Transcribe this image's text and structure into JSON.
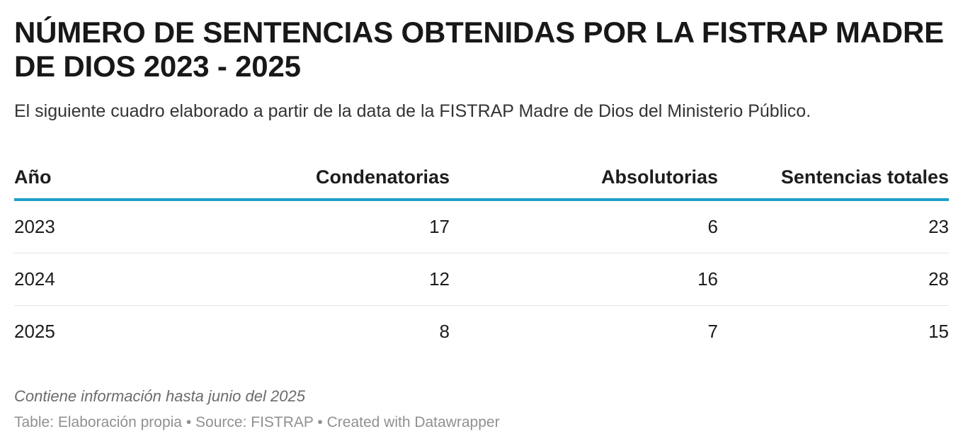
{
  "title": "NÚMERO DE SENTENCIAS OBTENIDAS POR LA FISTRAP MADRE DE DIOS 2023 - 2025",
  "subtitle": "El siguiente cuadro elaborado a partir de la data de la FISTRAP Madre de Dios del Ministerio Público.",
  "colors": {
    "header_rule": "#1d9fca",
    "row_divider": "#e3e3e3",
    "text": "#1d1d1d",
    "note_text": "#6b6b6b",
    "footer_text": "#909090"
  },
  "chart_data": {
    "type": "table",
    "columns": [
      "Año",
      "Condenatorias",
      "Absolutorias",
      "Sentencias totales"
    ],
    "rows": [
      [
        "2023",
        "17",
        "6",
        "23"
      ],
      [
        "2024",
        "12",
        "16",
        "28"
      ],
      [
        "2025",
        "8",
        "7",
        "15"
      ]
    ]
  },
  "notes": "Contiene información hasta junio del 2025",
  "footer": {
    "table_label": "Table: Elaboración propia",
    "separator": "•",
    "source": "Source: FISTRAP",
    "created_with": "Created with Datawrapper"
  }
}
